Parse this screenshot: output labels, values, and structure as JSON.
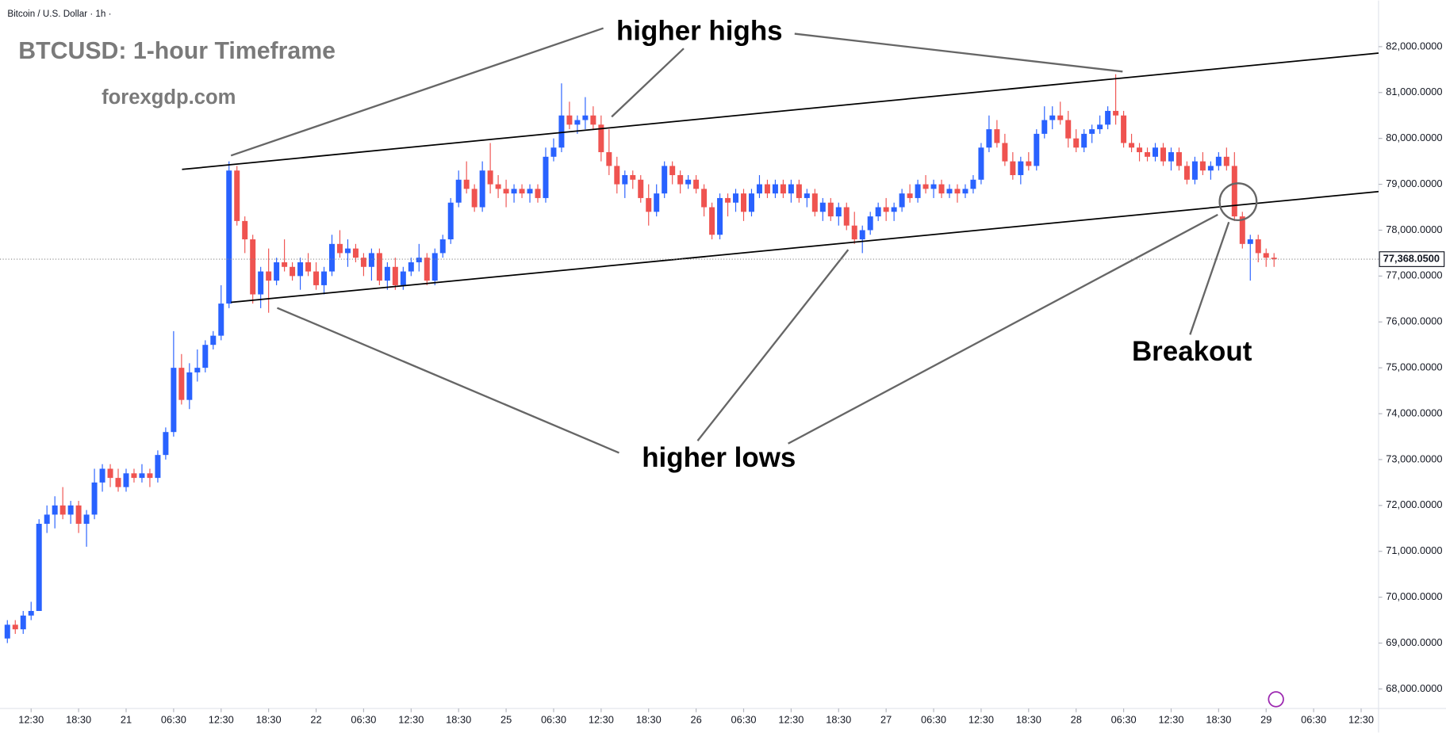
{
  "chart_data": {
    "type": "candlestick",
    "header": "Bitcoin / U.S. Dollar · 1h ·",
    "title": "BTCUSD: 1-hour Timeframe",
    "subtitle": "forexgdp.com",
    "annotations": [
      "higher highs",
      "higher lows",
      "Breakout"
    ],
    "up_color": "#2962ff",
    "down_color": "#ef5350",
    "ylim": [
      67574,
      83006
    ],
    "yticks": [
      {
        "value": 68000,
        "label": "68,000.0000"
      },
      {
        "value": 69000,
        "label": "69,000.0000"
      },
      {
        "value": 70000,
        "label": "70,000.0000"
      },
      {
        "value": 71000,
        "label": "71,000.0000"
      },
      {
        "value": 72000,
        "label": "72,000.0000"
      },
      {
        "value": 73000,
        "label": "73,000.0000"
      },
      {
        "value": 74000,
        "label": "74,000.0000"
      },
      {
        "value": 75000,
        "label": "75,000.0000"
      },
      {
        "value": 76000,
        "label": "76,000.0000"
      },
      {
        "value": 77000,
        "label": "77,000.0000"
      },
      {
        "value": 78000,
        "label": "78,000.0000"
      },
      {
        "value": 79000,
        "label": "79,000.0000"
      },
      {
        "value": 80000,
        "label": "80,000.0000"
      },
      {
        "value": 81000,
        "label": "81,000.0000"
      },
      {
        "value": 82000,
        "label": "82,000.0000"
      }
    ],
    "xlim": [
      -0.93,
      173.2
    ],
    "xticks": [
      {
        "value": 3,
        "label": "12:30"
      },
      {
        "value": 9,
        "label": "18:30"
      },
      {
        "value": 15,
        "label": "21"
      },
      {
        "value": 21,
        "label": "06:30"
      },
      {
        "value": 27,
        "label": "12:30"
      },
      {
        "value": 33,
        "label": "18:30"
      },
      {
        "value": 39,
        "label": "22"
      },
      {
        "value": 45,
        "label": "06:30"
      },
      {
        "value": 51,
        "label": "12:30"
      },
      {
        "value": 57,
        "label": "18:30"
      },
      {
        "value": 63,
        "label": "25"
      },
      {
        "value": 69,
        "label": "06:30"
      },
      {
        "value": 75,
        "label": "12:30"
      },
      {
        "value": 81,
        "label": "18:30"
      },
      {
        "value": 87,
        "label": "26"
      },
      {
        "value": 93,
        "label": "06:30"
      },
      {
        "value": 99,
        "label": "12:30"
      },
      {
        "value": 105,
        "label": "18:30"
      },
      {
        "value": 111,
        "label": "27"
      },
      {
        "value": 117,
        "label": "06:30"
      },
      {
        "value": 123,
        "label": "12:30"
      },
      {
        "value": 129,
        "label": "18:30"
      },
      {
        "value": 135,
        "label": "28"
      },
      {
        "value": 141,
        "label": "06:30"
      },
      {
        "value": 147,
        "label": "12:30"
      },
      {
        "value": 153,
        "label": "18:30"
      },
      {
        "value": 159,
        "label": "29"
      },
      {
        "value": 165,
        "label": "06:30"
      },
      {
        "value": 171,
        "label": "12:30"
      }
    ],
    "last_price": 77368.05,
    "last_price_label": "77,368.0500",
    "candles": [
      [
        69100,
        69500,
        69000,
        69400
      ],
      [
        69400,
        69500,
        69200,
        69300
      ],
      [
        69300,
        69700,
        69200,
        69600
      ],
      [
        69600,
        69900,
        69500,
        69700
      ],
      [
        69700,
        71700,
        69700,
        71600
      ],
      [
        71600,
        72000,
        71400,
        71800
      ],
      [
        71800,
        72200,
        71500,
        72000
      ],
      [
        72000,
        72400,
        71700,
        71800
      ],
      [
        71800,
        72100,
        71600,
        72000
      ],
      [
        72000,
        72100,
        71400,
        71600
      ],
      [
        71600,
        71900,
        71100,
        71800
      ],
      [
        71800,
        72800,
        71700,
        72500
      ],
      [
        72500,
        72900,
        72300,
        72800
      ],
      [
        72800,
        72900,
        72400,
        72600
      ],
      [
        72600,
        72800,
        72300,
        72400
      ],
      [
        72400,
        72800,
        72300,
        72700
      ],
      [
        72700,
        72800,
        72500,
        72600
      ],
      [
        72600,
        72900,
        72500,
        72700
      ],
      [
        72700,
        72800,
        72400,
        72600
      ],
      [
        72600,
        73200,
        72500,
        73100
      ],
      [
        73100,
        73700,
        73000,
        73600
      ],
      [
        73600,
        75800,
        73500,
        75000
      ],
      [
        75000,
        75300,
        74200,
        74300
      ],
      [
        74300,
        75100,
        74100,
        74900
      ],
      [
        74900,
        75400,
        74700,
        75000
      ],
      [
        75000,
        75600,
        74900,
        75500
      ],
      [
        75500,
        75800,
        75400,
        75700
      ],
      [
        75700,
        76800,
        75600,
        76400
      ],
      [
        76400,
        79500,
        76300,
        79300
      ],
      [
        79300,
        79400,
        78100,
        78200
      ],
      [
        78200,
        78300,
        77500,
        77800
      ],
      [
        77800,
        77900,
        76400,
        76600
      ],
      [
        76600,
        77200,
        76300,
        77100
      ],
      [
        77100,
        77600,
        76200,
        76900
      ],
      [
        76900,
        77400,
        76800,
        77300
      ],
      [
        77300,
        77800,
        77100,
        77200
      ],
      [
        77200,
        77300,
        76900,
        77000
      ],
      [
        77000,
        77400,
        76700,
        77300
      ],
      [
        77300,
        77500,
        77000,
        77100
      ],
      [
        77100,
        77300,
        76700,
        76800
      ],
      [
        76800,
        77200,
        76600,
        77100
      ],
      [
        77100,
        77900,
        77000,
        77700
      ],
      [
        77700,
        78000,
        77400,
        77500
      ],
      [
        77500,
        77800,
        77200,
        77600
      ],
      [
        77600,
        77700,
        77300,
        77400
      ],
      [
        77400,
        77500,
        77000,
        77200
      ],
      [
        77200,
        77600,
        76900,
        77500
      ],
      [
        77500,
        77600,
        76800,
        76900
      ],
      [
        76900,
        77300,
        76700,
        77200
      ],
      [
        77200,
        77400,
        76700,
        76800
      ],
      [
        76800,
        77200,
        76700,
        77100
      ],
      [
        77100,
        77400,
        77000,
        77300
      ],
      [
        77300,
        77700,
        77100,
        77400
      ],
      [
        77400,
        77500,
        76800,
        76900
      ],
      [
        76900,
        77600,
        76800,
        77500
      ],
      [
        77500,
        77900,
        77400,
        77800
      ],
      [
        77800,
        78700,
        77700,
        78600
      ],
      [
        78600,
        79300,
        78500,
        79100
      ],
      [
        79100,
        79500,
        78800,
        78900
      ],
      [
        78900,
        79000,
        78400,
        78500
      ],
      [
        78500,
        79500,
        78400,
        79300
      ],
      [
        79300,
        79900,
        78800,
        79000
      ],
      [
        79000,
        79200,
        78700,
        78900
      ],
      [
        78900,
        79100,
        78500,
        78800
      ],
      [
        78800,
        79000,
        78600,
        78900
      ],
      [
        78900,
        79000,
        78700,
        78800
      ],
      [
        78800,
        79000,
        78600,
        78900
      ],
      [
        78900,
        79000,
        78600,
        78700
      ],
      [
        78700,
        79800,
        78600,
        79600
      ],
      [
        79600,
        80000,
        79500,
        79800
      ],
      [
        79800,
        81200,
        79700,
        80500
      ],
      [
        80500,
        80800,
        80200,
        80300
      ],
      [
        80300,
        80500,
        80100,
        80400
      ],
      [
        80400,
        80900,
        80200,
        80500
      ],
      [
        80500,
        80700,
        80200,
        80300
      ],
      [
        80300,
        80500,
        79500,
        79700
      ],
      [
        79700,
        80200,
        79200,
        79400
      ],
      [
        79400,
        79600,
        78800,
        79000
      ],
      [
        79000,
        79300,
        78700,
        79200
      ],
      [
        79200,
        79300,
        78900,
        79100
      ],
      [
        79100,
        79200,
        78600,
        78700
      ],
      [
        78700,
        79000,
        78100,
        78400
      ],
      [
        78400,
        79000,
        78300,
        78800
      ],
      [
        78800,
        79500,
        78700,
        79400
      ],
      [
        79400,
        79500,
        79000,
        79200
      ],
      [
        79200,
        79300,
        78800,
        79000
      ],
      [
        79000,
        79200,
        78900,
        79100
      ],
      [
        79100,
        79200,
        78800,
        78900
      ],
      [
        78900,
        79000,
        78300,
        78500
      ],
      [
        78500,
        78600,
        77800,
        77900
      ],
      [
        77900,
        78800,
        77800,
        78700
      ],
      [
        78700,
        78800,
        78300,
        78600
      ],
      [
        78600,
        78900,
        78400,
        78800
      ],
      [
        78800,
        78900,
        78200,
        78400
      ],
      [
        78400,
        78900,
        78300,
        78800
      ],
      [
        78800,
        79200,
        78700,
        79000
      ],
      [
        79000,
        79100,
        78700,
        78800
      ],
      [
        78800,
        79100,
        78700,
        79000
      ],
      [
        79000,
        79100,
        78700,
        78800
      ],
      [
        78800,
        79100,
        78600,
        79000
      ],
      [
        79000,
        79100,
        78600,
        78700
      ],
      [
        78700,
        78900,
        78500,
        78800
      ],
      [
        78800,
        78900,
        78300,
        78400
      ],
      [
        78400,
        78700,
        78200,
        78600
      ],
      [
        78600,
        78700,
        78200,
        78300
      ],
      [
        78300,
        78600,
        78100,
        78500
      ],
      [
        78500,
        78600,
        78000,
        78100
      ],
      [
        78100,
        78400,
        77700,
        77800
      ],
      [
        77800,
        78100,
        77500,
        78000
      ],
      [
        78000,
        78400,
        77900,
        78300
      ],
      [
        78300,
        78600,
        78200,
        78500
      ],
      [
        78500,
        78700,
        78200,
        78400
      ],
      [
        78400,
        78600,
        78200,
        78500
      ],
      [
        78500,
        78900,
        78400,
        78800
      ],
      [
        78800,
        79000,
        78600,
        78700
      ],
      [
        78700,
        79100,
        78600,
        79000
      ],
      [
        79000,
        79200,
        78800,
        78900
      ],
      [
        78900,
        79100,
        78700,
        79000
      ],
      [
        79000,
        79100,
        78700,
        78800
      ],
      [
        78800,
        79000,
        78700,
        78900
      ],
      [
        78900,
        79000,
        78600,
        78800
      ],
      [
        78800,
        79000,
        78700,
        78900
      ],
      [
        78900,
        79200,
        78800,
        79100
      ],
      [
        79100,
        79900,
        79000,
        79800
      ],
      [
        79800,
        80500,
        79700,
        80200
      ],
      [
        80200,
        80400,
        79800,
        79900
      ],
      [
        79900,
        80100,
        79400,
        79500
      ],
      [
        79500,
        79700,
        79100,
        79200
      ],
      [
        79200,
        79600,
        79000,
        79500
      ],
      [
        79500,
        79700,
        79300,
        79400
      ],
      [
        79400,
        80200,
        79300,
        80100
      ],
      [
        80100,
        80700,
        80000,
        80400
      ],
      [
        80400,
        80700,
        80200,
        80500
      ],
      [
        80500,
        80800,
        80300,
        80400
      ],
      [
        80400,
        80600,
        79800,
        80000
      ],
      [
        80000,
        80200,
        79700,
        79800
      ],
      [
        79800,
        80200,
        79700,
        80100
      ],
      [
        80100,
        80300,
        79900,
        80200
      ],
      [
        80200,
        80500,
        80100,
        80300
      ],
      [
        80300,
        80700,
        80200,
        80600
      ],
      [
        80600,
        81400,
        80300,
        80500
      ],
      [
        80500,
        80600,
        79800,
        79900
      ],
      [
        79900,
        80100,
        79700,
        79800
      ],
      [
        79800,
        79900,
        79500,
        79700
      ],
      [
        79700,
        79800,
        79500,
        79600
      ],
      [
        79600,
        79900,
        79500,
        79800
      ],
      [
        79800,
        79900,
        79400,
        79500
      ],
      [
        79500,
        79800,
        79300,
        79700
      ],
      [
        79700,
        79800,
        79300,
        79400
      ],
      [
        79400,
        79500,
        79000,
        79100
      ],
      [
        79100,
        79600,
        79000,
        79500
      ],
      [
        79500,
        79700,
        79200,
        79300
      ],
      [
        79300,
        79500,
        79100,
        79400
      ],
      [
        79400,
        79700,
        79300,
        79600
      ],
      [
        79600,
        79800,
        79300,
        79400
      ],
      [
        79400,
        79700,
        78200,
        78300
      ],
      [
        78300,
        78400,
        77600,
        77700
      ],
      [
        77700,
        77900,
        76900,
        77800
      ],
      [
        77800,
        77900,
        77300,
        77500
      ],
      [
        77500,
        77600,
        77200,
        77400
      ],
      [
        77400,
        77500,
        77200,
        77368.05
      ]
    ]
  }
}
